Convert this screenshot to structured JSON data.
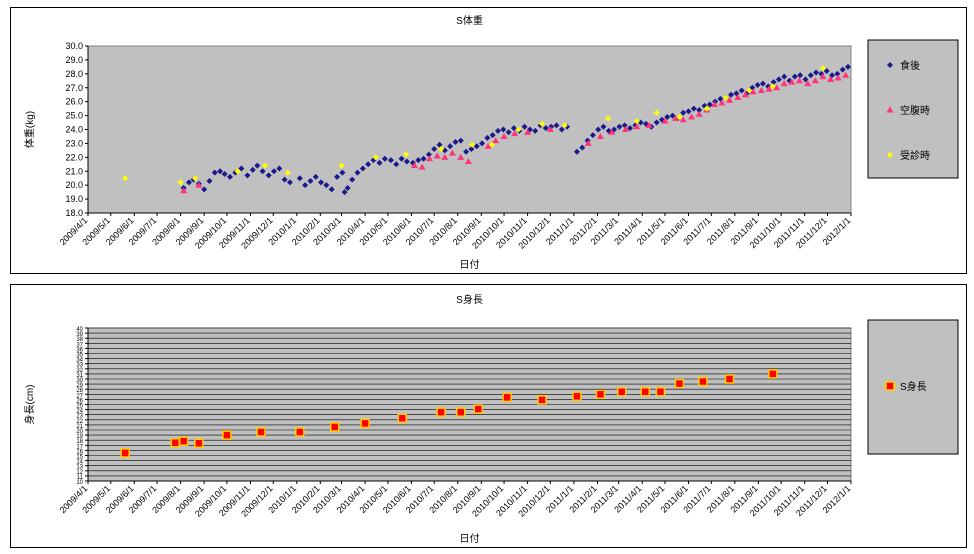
{
  "chart_data": [
    {
      "type": "scatter",
      "title": "S体重",
      "xlabel": "日付",
      "ylabel": "体重(kg)",
      "ylim": [
        18.0,
        30.0
      ],
      "yticks": [
        "18.0",
        "19.0",
        "20.0",
        "21.0",
        "22.0",
        "23.0",
        "24.0",
        "25.0",
        "26.0",
        "27.0",
        "28.0",
        "29.0",
        "30.0"
      ],
      "xlim": [
        "2009/4/1",
        "2012/1/1"
      ],
      "xticks": [
        "2009/4/1",
        "2009/5/1",
        "2009/6/1",
        "2009/7/1",
        "2009/8/1",
        "2009/9/1",
        "2009/10/1",
        "2009/11/1",
        "2009/12/1",
        "2010/1/1",
        "2010/2/1",
        "2010/3/1",
        "2010/4/1",
        "2010/5/1",
        "2010/6/1",
        "2010/7/1",
        "2010/8/1",
        "2010/9/1",
        "2010/10/1",
        "2010/11/1",
        "2010/12/1",
        "2011/1/1",
        "2011/2/1",
        "2011/3/1",
        "2011/4/1",
        "2011/5/1",
        "2011/6/1",
        "2011/7/1",
        "2011/8/1",
        "2011/9/1",
        "2011/10/1",
        "2011/11/1",
        "2011/12/1",
        "2012/1/1"
      ],
      "grid": false,
      "legend_position": "right",
      "series": [
        {
          "name": "食後",
          "color": "#1a1a8c",
          "marker": "diamond",
          "points": [
            [
              "2009/8/5",
              19.8
            ],
            [
              "2009/8/12",
              20.2
            ],
            [
              "2009/8/18",
              20.4
            ],
            [
              "2009/8/25",
              20.1
            ],
            [
              "2009/9/1",
              19.7
            ],
            [
              "2009/9/8",
              20.3
            ],
            [
              "2009/9/15",
              20.9
            ],
            [
              "2009/9/22",
              21.0
            ],
            [
              "2009/9/28",
              20.8
            ],
            [
              "2009/10/5",
              20.6
            ],
            [
              "2009/10/12",
              20.9
            ],
            [
              "2009/10/20",
              21.2
            ],
            [
              "2009/10/28",
              20.7
            ],
            [
              "2009/11/4",
              21.1
            ],
            [
              "2009/11/10",
              21.4
            ],
            [
              "2009/11/17",
              21.0
            ],
            [
              "2009/11/25",
              20.7
            ],
            [
              "2009/12/2",
              21.0
            ],
            [
              "2009/12/9",
              21.2
            ],
            [
              "2009/12/16",
              20.4
            ],
            [
              "2009/12/23",
              20.2
            ],
            [
              "2010/1/5",
              20.5
            ],
            [
              "2010/1/12",
              20.0
            ],
            [
              "2010/1/19",
              20.3
            ],
            [
              "2010/1/26",
              20.6
            ],
            [
              "2010/2/2",
              20.2
            ],
            [
              "2010/2/9",
              20.0
            ],
            [
              "2010/2/16",
              19.7
            ],
            [
              "2010/2/23",
              20.6
            ],
            [
              "2010/3/2",
              20.9
            ],
            [
              "2010/3/5",
              19.5
            ],
            [
              "2010/3/9",
              19.8
            ],
            [
              "2010/3/15",
              20.4
            ],
            [
              "2010/3/22",
              20.9
            ],
            [
              "2010/3/29",
              21.2
            ],
            [
              "2010/4/5",
              21.5
            ],
            [
              "2010/4/12",
              21.8
            ],
            [
              "2010/4/20",
              21.6
            ],
            [
              "2010/4/27",
              21.9
            ],
            [
              "2010/5/5",
              21.8
            ],
            [
              "2010/5/12",
              21.5
            ],
            [
              "2010/5/19",
              21.9
            ],
            [
              "2010/5/26",
              21.7
            ],
            [
              "2010/6/3",
              21.6
            ],
            [
              "2010/6/10",
              21.8
            ],
            [
              "2010/6/17",
              21.9
            ],
            [
              "2010/6/24",
              22.2
            ],
            [
              "2010/7/1",
              22.6
            ],
            [
              "2010/7/8",
              22.9
            ],
            [
              "2010/7/15",
              22.5
            ],
            [
              "2010/7/22",
              22.8
            ],
            [
              "2010/7/29",
              23.1
            ],
            [
              "2010/8/5",
              23.2
            ],
            [
              "2010/8/12",
              22.4
            ],
            [
              "2010/8/19",
              22.6
            ],
            [
              "2010/8/26",
              22.8
            ],
            [
              "2010/9/2",
              23.0
            ],
            [
              "2010/9/9",
              23.4
            ],
            [
              "2010/9/16",
              23.6
            ],
            [
              "2010/9/23",
              23.9
            ],
            [
              "2010/9/30",
              24.0
            ],
            [
              "2010/10/7",
              23.8
            ],
            [
              "2010/10/14",
              24.1
            ],
            [
              "2010/10/21",
              23.9
            ],
            [
              "2010/10/28",
              24.2
            ],
            [
              "2010/11/4",
              24.0
            ],
            [
              "2010/11/11",
              23.9
            ],
            [
              "2010/11/18",
              24.3
            ],
            [
              "2010/11/25",
              24.1
            ],
            [
              "2010/12/2",
              24.2
            ],
            [
              "2010/12/9",
              24.3
            ],
            [
              "2010/12/16",
              24.0
            ],
            [
              "2010/12/23",
              24.2
            ],
            [
              "2011/1/5",
              22.4
            ],
            [
              "2011/1/12",
              22.7
            ],
            [
              "2011/1/19",
              23.2
            ],
            [
              "2011/1/26",
              23.6
            ],
            [
              "2011/2/2",
              24.0
            ],
            [
              "2011/2/9",
              24.2
            ],
            [
              "2011/2/16",
              23.9
            ],
            [
              "2011/2/23",
              24.0
            ],
            [
              "2011/3/2",
              24.2
            ],
            [
              "2011/3/9",
              24.3
            ],
            [
              "2011/3/16",
              24.1
            ],
            [
              "2011/3/23",
              24.3
            ],
            [
              "2011/3/30",
              24.5
            ],
            [
              "2011/4/6",
              24.4
            ],
            [
              "2011/4/13",
              24.2
            ],
            [
              "2011/4/20",
              24.5
            ],
            [
              "2011/4/27",
              24.7
            ],
            [
              "2011/5/4",
              24.9
            ],
            [
              "2011/5/11",
              25.0
            ],
            [
              "2011/5/18",
              24.8
            ],
            [
              "2011/5/25",
              25.2
            ],
            [
              "2011/6/1",
              25.3
            ],
            [
              "2011/6/8",
              25.5
            ],
            [
              "2011/6/15",
              25.4
            ],
            [
              "2011/6/22",
              25.7
            ],
            [
              "2011/6/29",
              25.8
            ],
            [
              "2011/7/6",
              26.0
            ],
            [
              "2011/7/13",
              26.2
            ],
            [
              "2011/7/20",
              26.3
            ],
            [
              "2011/7/27",
              26.5
            ],
            [
              "2011/8/3",
              26.6
            ],
            [
              "2011/8/10",
              26.8
            ],
            [
              "2011/8/17",
              26.6
            ],
            [
              "2011/8/24",
              27.0
            ],
            [
              "2011/8/31",
              27.2
            ],
            [
              "2011/9/7",
              27.3
            ],
            [
              "2011/9/14",
              27.1
            ],
            [
              "2011/9/21",
              27.4
            ],
            [
              "2011/9/28",
              27.6
            ],
            [
              "2011/10/5",
              27.8
            ],
            [
              "2011/10/12",
              27.5
            ],
            [
              "2011/10/19",
              27.8
            ],
            [
              "2011/10/26",
              27.9
            ],
            [
              "2011/11/2",
              27.6
            ],
            [
              "2011/11/9",
              27.9
            ],
            [
              "2011/11/16",
              28.1
            ],
            [
              "2011/11/23",
              28.0
            ],
            [
              "2011/11/30",
              28.2
            ],
            [
              "2011/12/7",
              27.9
            ],
            [
              "2011/12/14",
              28.0
            ],
            [
              "2011/12/21",
              28.3
            ],
            [
              "2011/12/28",
              28.5
            ]
          ]
        },
        {
          "name": "空腹時",
          "color": "#ff3377",
          "marker": "triangle",
          "points": [
            [
              "2009/8/5",
              19.6
            ],
            [
              "2009/8/25",
              20.0
            ],
            [
              "2010/6/5",
              21.4
            ],
            [
              "2010/6/15",
              21.3
            ],
            [
              "2010/6/25",
              21.9
            ],
            [
              "2010/7/5",
              22.1
            ],
            [
              "2010/7/15",
              22.0
            ],
            [
              "2010/7/25",
              22.3
            ],
            [
              "2010/8/5",
              22.0
            ],
            [
              "2010/8/15",
              21.7
            ],
            [
              "2010/9/10",
              22.8
            ],
            [
              "2010/9/20",
              23.2
            ],
            [
              "2010/10/1",
              23.5
            ],
            [
              "2010/10/15",
              23.7
            ],
            [
              "2010/11/1",
              23.8
            ],
            [
              "2010/12/1",
              24.0
            ],
            [
              "2011/1/20",
              23.0
            ],
            [
              "2011/2/5",
              23.5
            ],
            [
              "2011/2/20",
              23.8
            ],
            [
              "2011/3/10",
              24.0
            ],
            [
              "2011/3/25",
              24.2
            ],
            [
              "2011/4/10",
              24.3
            ],
            [
              "2011/5/1",
              24.6
            ],
            [
              "2011/5/15",
              24.8
            ],
            [
              "2011/5/25",
              24.7
            ],
            [
              "2011/6/5",
              24.9
            ],
            [
              "2011/6/15",
              25.1
            ],
            [
              "2011/6/25",
              25.4
            ],
            [
              "2011/7/5",
              25.8
            ],
            [
              "2011/7/15",
              25.9
            ],
            [
              "2011/7/25",
              26.1
            ],
            [
              "2011/8/5",
              26.3
            ],
            [
              "2011/8/15",
              26.5
            ],
            [
              "2011/8/25",
              26.7
            ],
            [
              "2011/9/5",
              26.8
            ],
            [
              "2011/9/15",
              26.9
            ],
            [
              "2011/9/25",
              27.0
            ],
            [
              "2011/10/5",
              27.3
            ],
            [
              "2011/10/15",
              27.4
            ],
            [
              "2011/10/25",
              27.5
            ],
            [
              "2011/11/5",
              27.3
            ],
            [
              "2011/11/15",
              27.5
            ],
            [
              "2011/11/25",
              27.8
            ],
            [
              "2011/12/5",
              27.6
            ],
            [
              "2011/12/15",
              27.7
            ],
            [
              "2011/12/25",
              27.9
            ]
          ]
        },
        {
          "name": "受診時",
          "color": "#ffff00",
          "marker": "diamond",
          "points": [
            [
              "2009/5/20",
              20.5
            ],
            [
              "2009/8/1",
              20.2
            ],
            [
              "2009/8/20",
              20.5
            ],
            [
              "2009/10/15",
              21.0
            ],
            [
              "2009/11/20",
              21.4
            ],
            [
              "2009/12/20",
              20.9
            ],
            [
              "2010/3/1",
              21.4
            ],
            [
              "2010/4/15",
              22.0
            ],
            [
              "2010/5/25",
              22.2
            ],
            [
              "2010/7/10",
              22.6
            ],
            [
              "2010/8/20",
              22.9
            ],
            [
              "2010/9/15",
              22.9
            ],
            [
              "2010/10/20",
              24.0
            ],
            [
              "2010/11/20",
              24.4
            ],
            [
              "2010/12/20",
              24.3
            ],
            [
              "2011/2/15",
              24.8
            ],
            [
              "2011/3/25",
              24.6
            ],
            [
              "2011/4/20",
              25.2
            ],
            [
              "2011/5/20",
              24.9
            ],
            [
              "2011/6/25",
              25.5
            ],
            [
              "2011/7/20",
              26.3
            ],
            [
              "2011/8/20",
              26.8
            ],
            [
              "2011/9/20",
              27.1
            ],
            [
              "2011/11/25",
              28.4
            ]
          ]
        }
      ]
    },
    {
      "type": "scatter",
      "title": "S身長",
      "xlabel": "日付",
      "ylabel": "身長(cm)",
      "ylim": [
        10,
        40
      ],
      "yticks": [
        "10",
        "11",
        "12",
        "13",
        "14",
        "15",
        "16",
        "17",
        "18",
        "19",
        "20",
        "21",
        "22",
        "23",
        "24",
        "25",
        "26",
        "27",
        "28",
        "29",
        "30",
        "31",
        "32",
        "33",
        "34",
        "35",
        "36",
        "37",
        "38",
        "39",
        "40"
      ],
      "xlim": [
        "2009/4/1",
        "2012/1/1"
      ],
      "xticks": [
        "2009/4/1",
        "2009/5/1",
        "2009/6/1",
        "2009/7/1",
        "2009/8/1",
        "2009/9/1",
        "2009/10/1",
        "2009/11/1",
        "2009/12/1",
        "2010/1/1",
        "2010/2/1",
        "2010/3/1",
        "2010/4/1",
        "2010/5/1",
        "2010/6/1",
        "2010/7/1",
        "2010/8/1",
        "2010/9/1",
        "2010/10/1",
        "2010/11/1",
        "2010/12/1",
        "2011/1/1",
        "2011/2/1",
        "2011/3/1",
        "2011/4/1",
        "2011/5/1",
        "2011/6/1",
        "2011/7/1",
        "2011/8/1",
        "2011/9/1",
        "2011/10/1",
        "2011/11/1",
        "2011/12/1",
        "2012/1/1"
      ],
      "grid": true,
      "legend_position": "right",
      "series": [
        {
          "name": "S身長",
          "color": "#ff0000",
          "edge": "#ffcc00",
          "marker": "square",
          "points": [
            [
              "2009/5/20",
              15.5
            ],
            [
              "2009/7/25",
              17.5
            ],
            [
              "2009/8/5",
              17.8
            ],
            [
              "2009/8/25",
              17.4
            ],
            [
              "2009/10/1",
              19.0
            ],
            [
              "2009/11/15",
              19.6
            ],
            [
              "2010/1/5",
              19.6
            ],
            [
              "2010/2/20",
              20.6
            ],
            [
              "2010/4/1",
              21.3
            ],
            [
              "2010/5/20",
              22.3
            ],
            [
              "2010/7/10",
              23.5
            ],
            [
              "2010/8/5",
              23.5
            ],
            [
              "2010/8/28",
              24.1
            ],
            [
              "2010/10/5",
              26.4
            ],
            [
              "2010/11/20",
              25.9
            ],
            [
              "2011/1/5",
              26.6
            ],
            [
              "2011/2/5",
              27.0
            ],
            [
              "2011/3/5",
              27.5
            ],
            [
              "2011/4/5",
              27.5
            ],
            [
              "2011/4/25",
              27.5
            ],
            [
              "2011/5/20",
              29.1
            ],
            [
              "2011/6/20",
              29.5
            ],
            [
              "2011/7/25",
              30.0
            ],
            [
              "2011/9/20",
              31.0
            ]
          ]
        }
      ]
    }
  ]
}
